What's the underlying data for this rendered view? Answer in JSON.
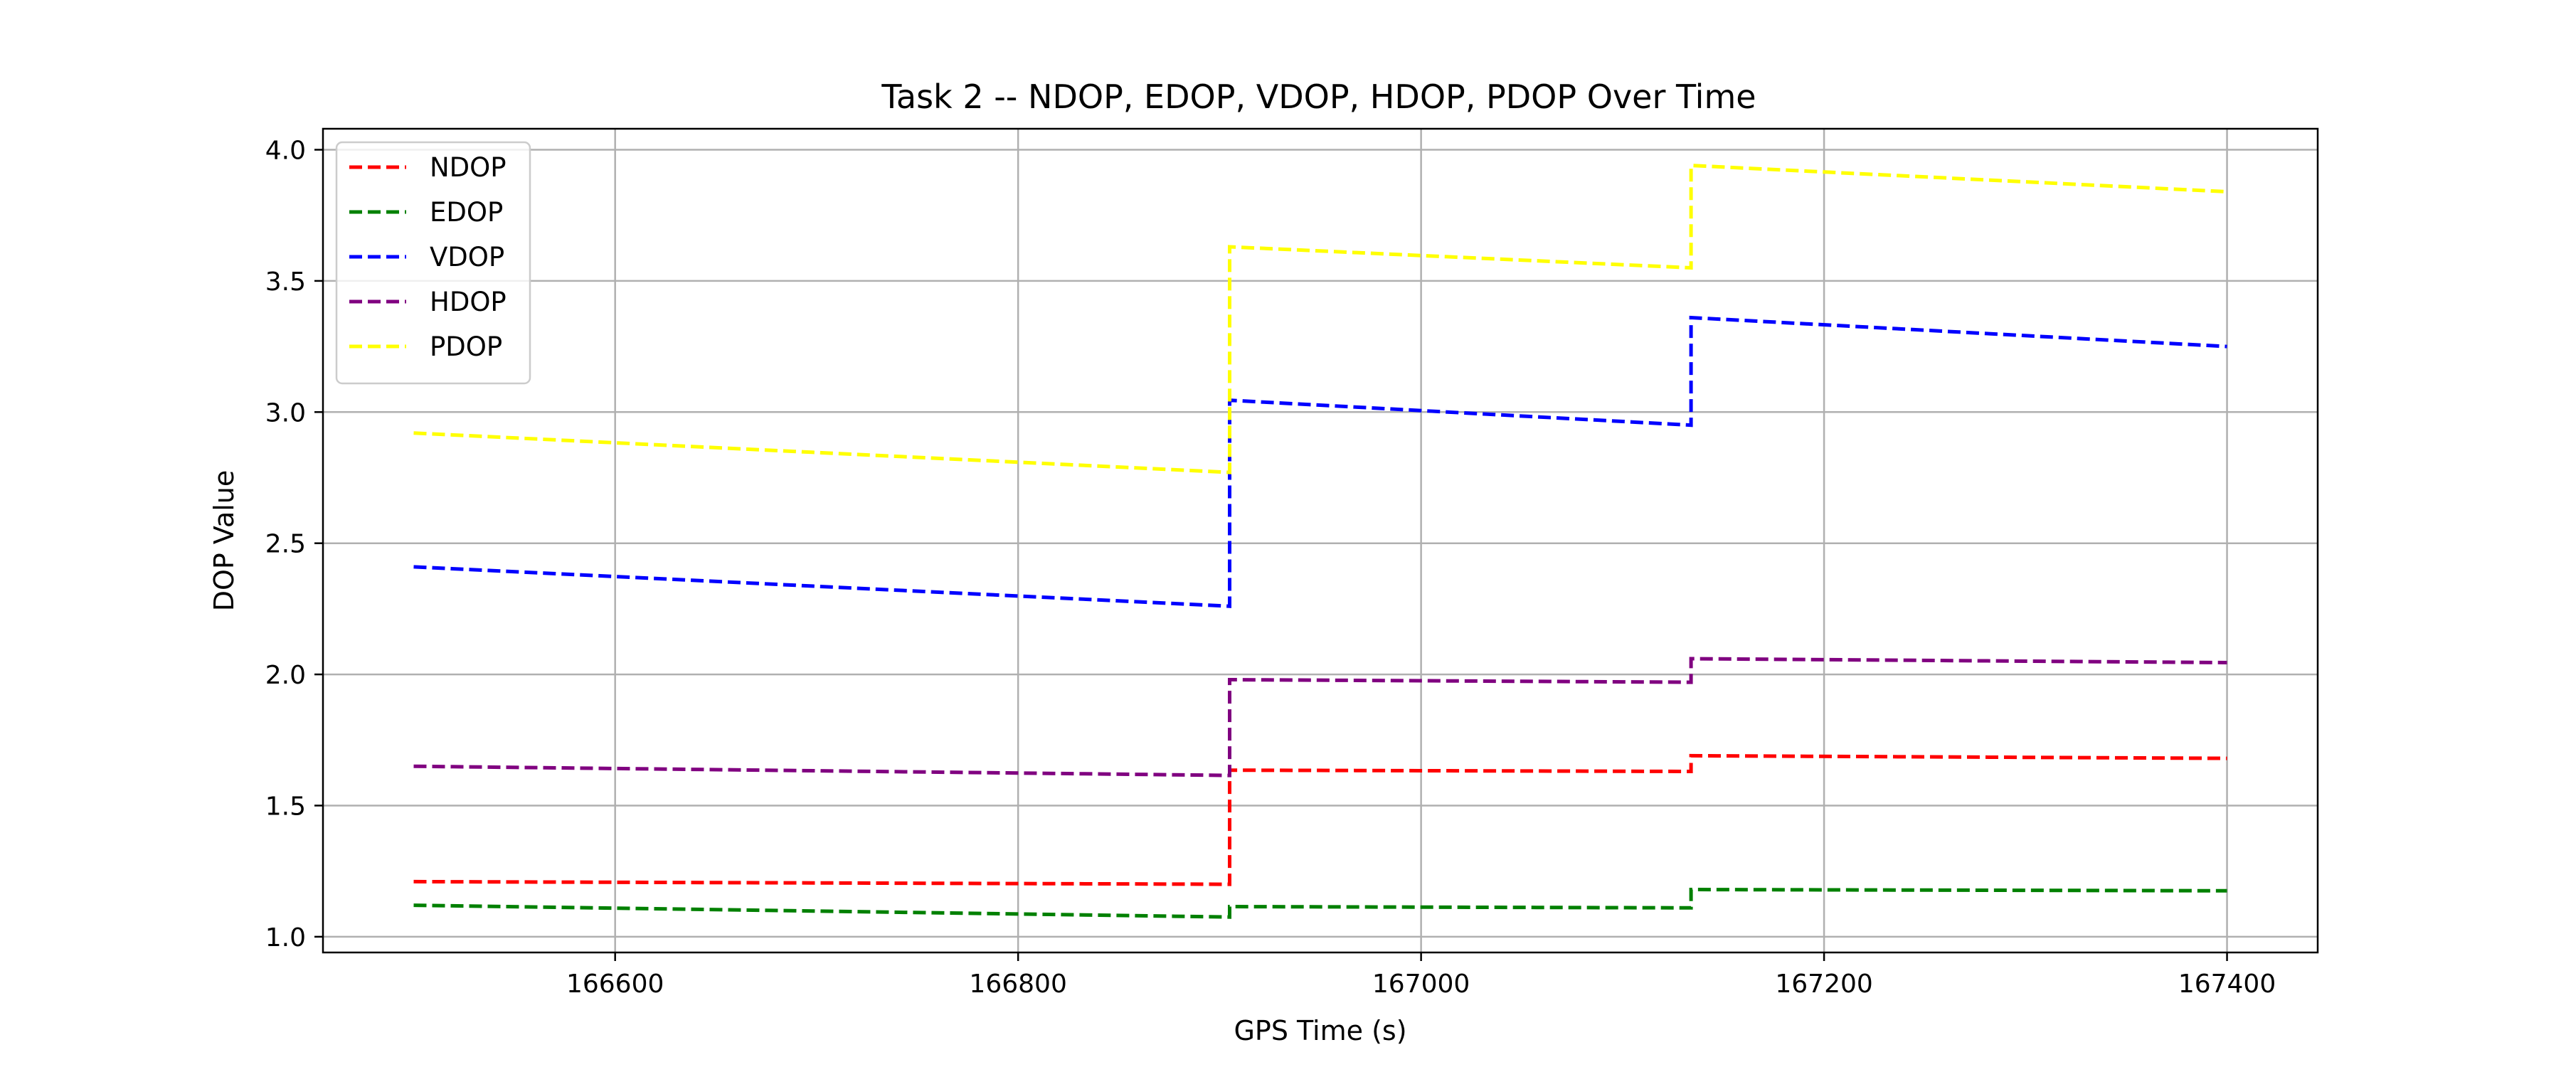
{
  "chart_data": {
    "type": "line",
    "title": "Task 2 -- NDOP, EDOP, VDOP, HDOP, PDOP Over Time",
    "xlabel": "GPS Time (s)",
    "ylabel": "DOP Value",
    "xlim": [
      166455,
      167445
    ],
    "ylim": [
      0.94,
      4.08
    ],
    "xticks": [
      166600,
      166800,
      167000,
      167200,
      167400
    ],
    "yticks": [
      1.0,
      1.5,
      2.0,
      2.5,
      3.0,
      3.5,
      4.0
    ],
    "xtick_labels": [
      "166600",
      "166800",
      "167000",
      "167200",
      "167400"
    ],
    "ytick_labels": [
      "1.0",
      "1.5",
      "2.0",
      "2.5",
      "3.0",
      "3.5",
      "4.0"
    ],
    "grid": true,
    "line_style": "dashed",
    "legend_position": "top-left",
    "series": [
      {
        "name": "NDOP",
        "color": "#ff0000",
        "points": [
          [
            166500,
            1.21
          ],
          [
            166905,
            1.2
          ],
          [
            166905,
            1.635
          ],
          [
            167134,
            1.63
          ],
          [
            167134,
            1.69
          ],
          [
            167400,
            1.68
          ]
        ]
      },
      {
        "name": "EDOP",
        "color": "#008000",
        "points": [
          [
            166500,
            1.12
          ],
          [
            166905,
            1.075
          ],
          [
            166905,
            1.115
          ],
          [
            167134,
            1.11
          ],
          [
            167134,
            1.18
          ],
          [
            167400,
            1.175
          ]
        ]
      },
      {
        "name": "VDOP",
        "color": "#0000ff",
        "points": [
          [
            166500,
            2.41
          ],
          [
            166905,
            2.26
          ],
          [
            166905,
            3.045
          ],
          [
            167134,
            2.95
          ],
          [
            167134,
            3.36
          ],
          [
            167400,
            3.25
          ]
        ]
      },
      {
        "name": "HDOP",
        "color": "#800080",
        "points": [
          [
            166500,
            1.65
          ],
          [
            166905,
            1.615
          ],
          [
            166905,
            1.98
          ],
          [
            167134,
            1.97
          ],
          [
            167134,
            2.06
          ],
          [
            167400,
            2.045
          ]
        ]
      },
      {
        "name": "PDOP",
        "color": "#ffff00",
        "points": [
          [
            166500,
            2.92
          ],
          [
            166905,
            2.77
          ],
          [
            166905,
            3.63
          ],
          [
            167134,
            3.55
          ],
          [
            167134,
            3.94
          ],
          [
            167400,
            3.84
          ]
        ]
      }
    ]
  }
}
